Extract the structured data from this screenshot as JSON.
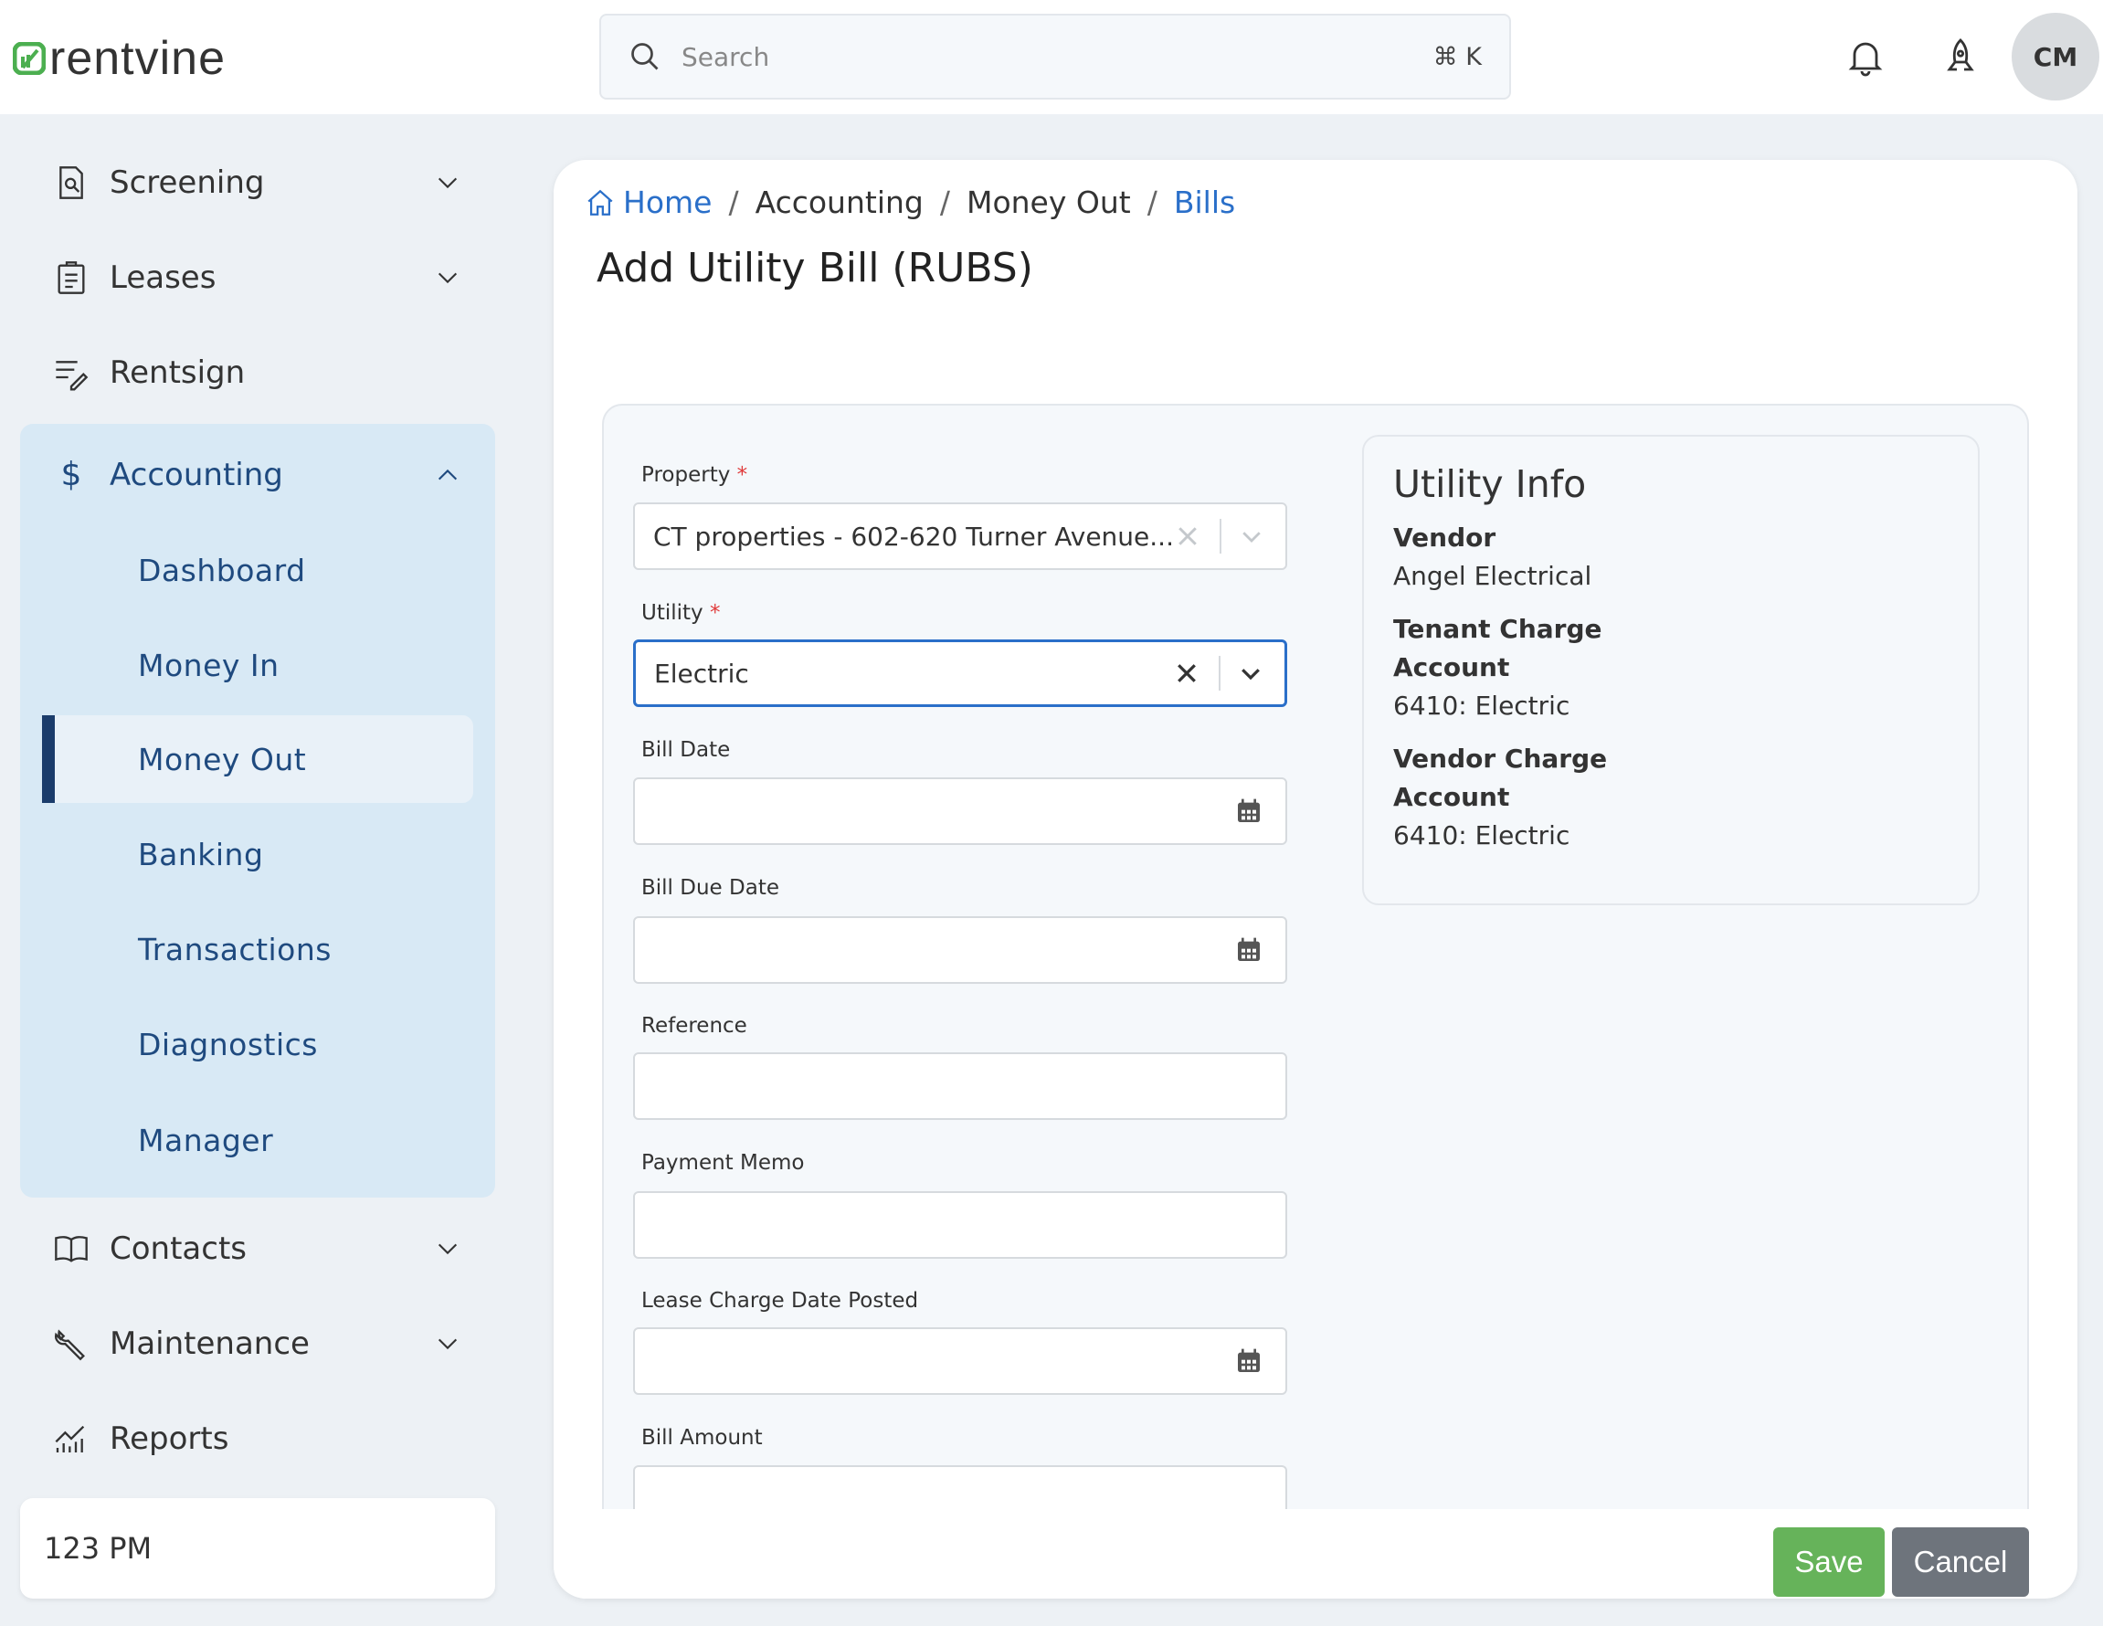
{
  "header": {
    "logo": "rentvine",
    "search_placeholder": "Search",
    "search_shortcut": "⌘ K",
    "avatar_initials": "CM"
  },
  "sidebar": {
    "items_top": [
      {
        "label": "Screening",
        "icon": "screening-icon"
      },
      {
        "label": "Leases",
        "icon": "clipboard-icon"
      },
      {
        "label": "Rentsign",
        "icon": "sign-icon"
      }
    ],
    "accounting": {
      "label": "Accounting",
      "sub": [
        "Dashboard",
        "Money In",
        "Money Out",
        "Banking",
        "Transactions",
        "Diagnostics",
        "Manager"
      ],
      "active": "Money Out"
    },
    "items_bottom": [
      {
        "label": "Contacts",
        "icon": "book-icon"
      },
      {
        "label": "Maintenance",
        "icon": "wrench-icon"
      },
      {
        "label": "Reports",
        "icon": "chart-icon"
      }
    ],
    "user_card": "123 PM"
  },
  "breadcrumb": [
    "Home",
    "Accounting",
    "Money Out",
    "Bills"
  ],
  "page_title": "Add Utility Bill (RUBS)",
  "form": {
    "property": {
      "label": "Property",
      "value": "CT properties - 602-620 Turner Avenue..."
    },
    "utility": {
      "label": "Utility",
      "value": "Electric"
    },
    "bill_date": {
      "label": "Bill Date",
      "value": ""
    },
    "bill_due_date": {
      "label": "Bill Due Date",
      "value": ""
    },
    "reference": {
      "label": "Reference",
      "value": ""
    },
    "payment_memo": {
      "label": "Payment Memo",
      "value": ""
    },
    "lease_charge_date": {
      "label": "Lease Charge Date Posted",
      "value": ""
    },
    "bill_amount": {
      "label": "Bill Amount",
      "value": ""
    },
    "required_mark": "*"
  },
  "utility_info": {
    "title": "Utility Info",
    "vendor_label": "Vendor",
    "vendor": "Angel Electrical",
    "tenant_label": "Tenant Charge Account",
    "tenant": "6410: Electric",
    "vendor_charge_label": "Vendor Charge Account",
    "vendor_charge": "6410: Electric"
  },
  "actions": {
    "save": "Save",
    "cancel": "Cancel"
  },
  "colors": {
    "accent": "#2a6fc9",
    "save": "#66b35a",
    "cancel": "#6e747c",
    "nav": "#1f4a7f",
    "logo": "#4caf50"
  }
}
